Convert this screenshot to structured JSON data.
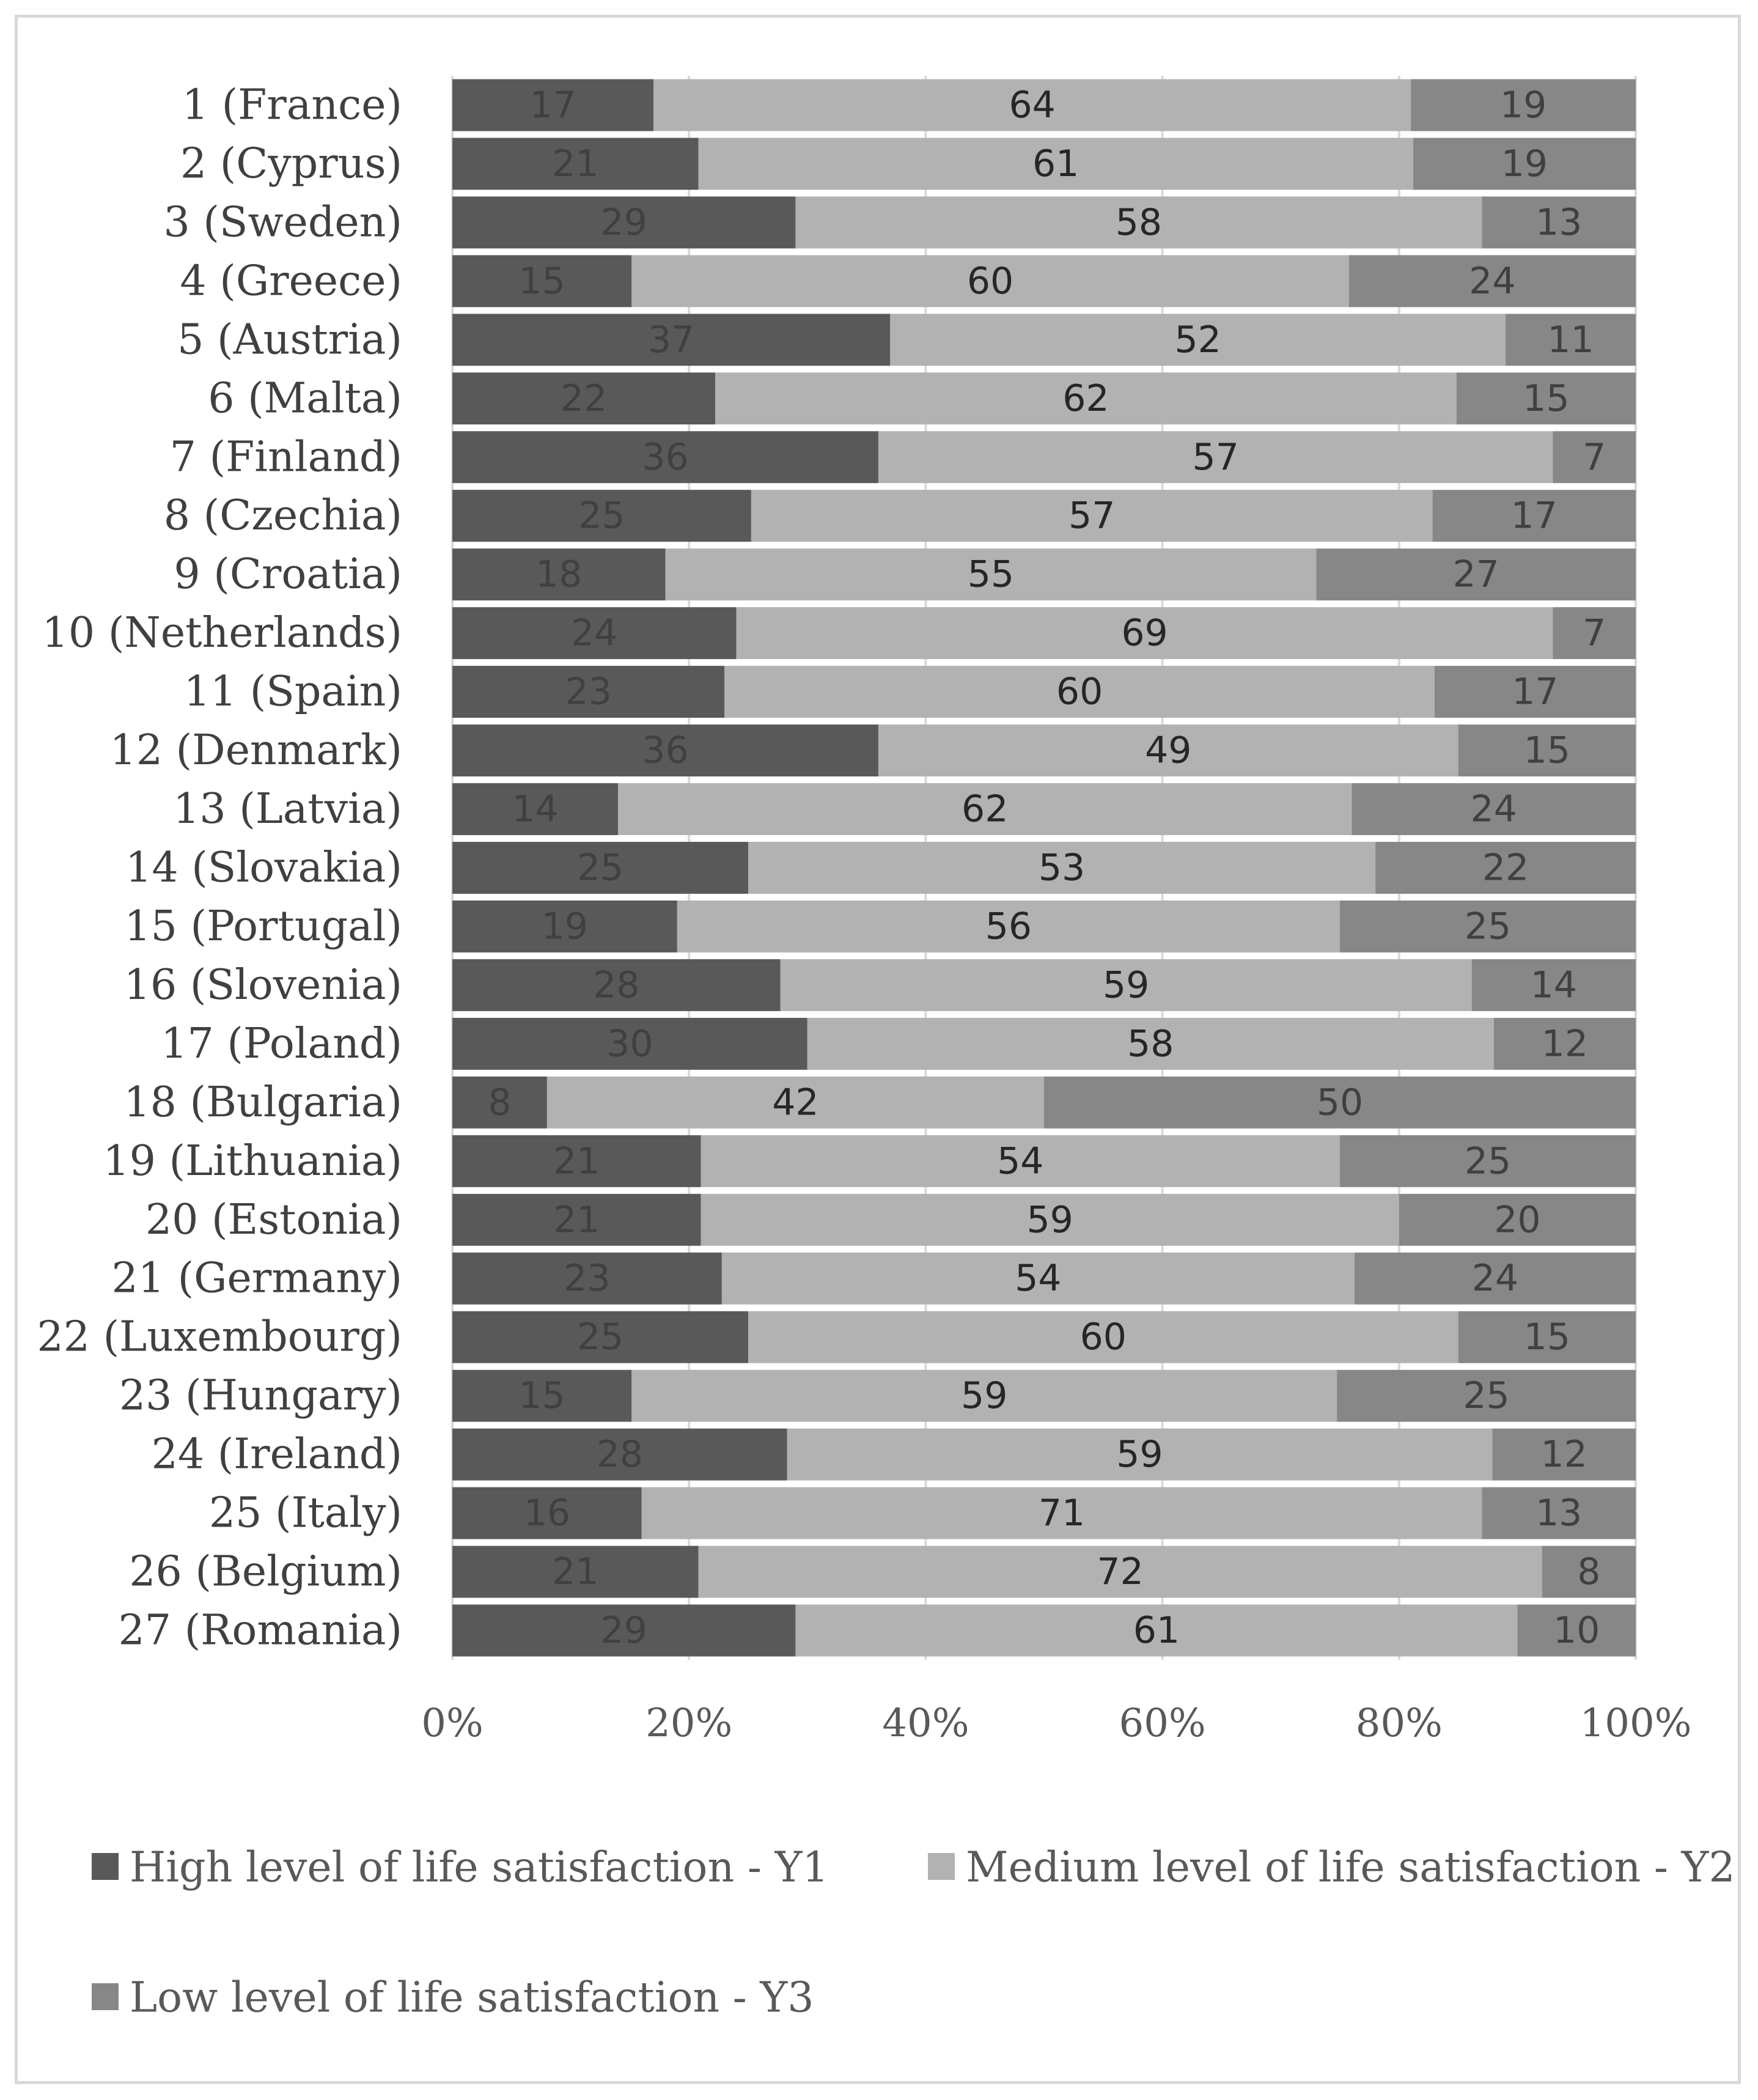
{
  "chart_data": {
    "type": "bar",
    "orientation": "horizontal",
    "stacked": "percent",
    "categories": [
      "1 (France)",
      "2 (Cyprus)",
      "3 (Sweden)",
      "4 (Greece)",
      "5 (Austria)",
      "6 (Malta)",
      "7 (Finland)",
      "8 (Czechia)",
      "9 (Croatia)",
      "10 (Netherlands)",
      "11 (Spain)",
      "12 (Denmark)",
      "13 (Latvia)",
      "14 (Slovakia)",
      "15 (Portugal)",
      "16 (Slovenia)",
      "17 (Poland)",
      "18 (Bulgaria)",
      "19 (Lithuania)",
      "20 (Estonia)",
      "21 (Germany)",
      "22 (Luxembourg)",
      "23 (Hungary)",
      "24 (Ireland)",
      "25 (Italy)",
      "26 (Belgium)",
      "27 (Romania)"
    ],
    "series": [
      {
        "name": "High level of life satisfaction - Y1",
        "color": "#595959",
        "label_color": "#404040",
        "values": [
          17,
          21,
          29,
          15,
          37,
          22,
          36,
          25,
          18,
          24,
          23,
          36,
          14,
          25,
          19,
          28,
          30,
          8,
          21,
          21,
          23,
          25,
          15,
          28,
          16,
          21,
          29
        ]
      },
      {
        "name": "Medium level of life satisfaction - Y2",
        "color": "#b2b2b2",
        "label_color": "#262626",
        "values": [
          64,
          61,
          58,
          60,
          52,
          62,
          57,
          57,
          55,
          69,
          60,
          49,
          62,
          53,
          56,
          59,
          58,
          42,
          54,
          59,
          54,
          60,
          59,
          59,
          71,
          72,
          61
        ]
      },
      {
        "name": "Low level of life satisfaction - Y3",
        "color": "#878787",
        "label_color": "#404040",
        "values": [
          19,
          19,
          13,
          24,
          11,
          15,
          7,
          17,
          27,
          7,
          17,
          15,
          24,
          22,
          25,
          14,
          12,
          50,
          25,
          20,
          24,
          15,
          25,
          12,
          13,
          8,
          10
        ]
      }
    ],
    "x_ticks": [
      "0%",
      "20%",
      "40%",
      "60%",
      "80%",
      "100%"
    ],
    "xlim": [
      0,
      100
    ],
    "title": "",
    "xlabel": "",
    "ylabel": "",
    "grid": true,
    "legend_position": "bottom"
  }
}
